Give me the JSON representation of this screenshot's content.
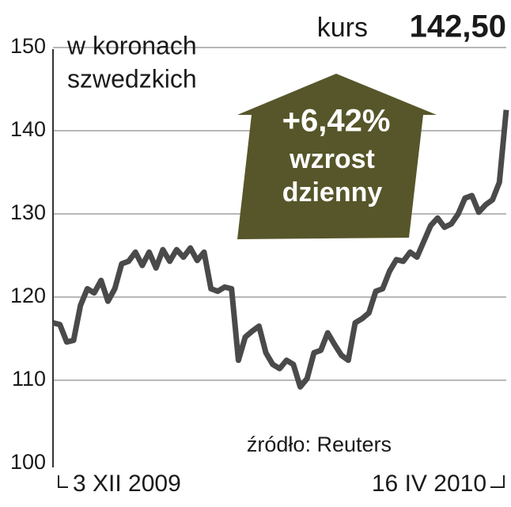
{
  "chart_data": {
    "type": "line",
    "title": "kurs",
    "unit": [
      "w koronach",
      "szwedzkich"
    ],
    "change": {
      "value": 6.42,
      "label": "+6,42%"
    },
    "change_text": [
      "wzrost",
      "dzienny"
    ],
    "source": "źródło: Reuters",
    "categories": [
      "3 XII 2009",
      null,
      null,
      null,
      null,
      null,
      null,
      null,
      null,
      null,
      null,
      null,
      null,
      null,
      null,
      null,
      null,
      null,
      null,
      null,
      null,
      null,
      null,
      null,
      null,
      null,
      null,
      null,
      null,
      null,
      null,
      null,
      null,
      null,
      null,
      null,
      null,
      null,
      null,
      null,
      null,
      null,
      null,
      null,
      null,
      null,
      null,
      null,
      null,
      null,
      null,
      null,
      null,
      null,
      null,
      null,
      null,
      null,
      null,
      null,
      null,
      null,
      null,
      null,
      null,
      null,
      "16 IV 2010"
    ],
    "values": [
      116.9,
      116.7,
      114.6,
      114.8,
      119,
      121,
      120.5,
      122,
      119.5,
      121,
      124,
      124.3,
      125.4,
      123.8,
      125.4,
      123.5,
      125.7,
      124.3,
      125.7,
      124.8,
      125.9,
      124.4,
      125.4,
      121,
      120.7,
      121.2,
      121,
      112.4,
      115.2,
      115.9,
      116.5,
      113.3,
      111.9,
      111.4,
      112.4,
      111.9,
      109.2,
      110.2,
      113.3,
      113.6,
      115.7,
      114.3,
      113,
      112.4,
      116.9,
      117.4,
      118.1,
      120.7,
      121,
      123.1,
      124.5,
      124.3,
      125.4,
      124.8,
      126.7,
      128.6,
      129.5,
      128.4,
      128.8,
      130,
      131.9,
      132.2,
      130.2,
      131.1,
      131.7,
      133.8,
      142.5
    ],
    "value_labels": [
      null,
      null,
      null,
      null,
      null,
      null,
      null,
      null,
      null,
      null,
      null,
      null,
      null,
      null,
      null,
      null,
      null,
      null,
      null,
      null,
      null,
      null,
      null,
      null,
      null,
      null,
      null,
      null,
      null,
      null,
      null,
      null,
      null,
      null,
      null,
      null,
      null,
      null,
      null,
      null,
      null,
      null,
      null,
      null,
      null,
      null,
      null,
      null,
      null,
      null,
      null,
      null,
      null,
      null,
      null,
      null,
      null,
      null,
      null,
      null,
      null,
      null,
      null,
      null,
      null,
      null,
      "142,50"
    ],
    "color": "#4a4a4a",
    "ylim": [
      100,
      150
    ],
    "yticks": [
      100,
      110,
      120,
      130,
      140,
      150
    ],
    "grid": true
  }
}
